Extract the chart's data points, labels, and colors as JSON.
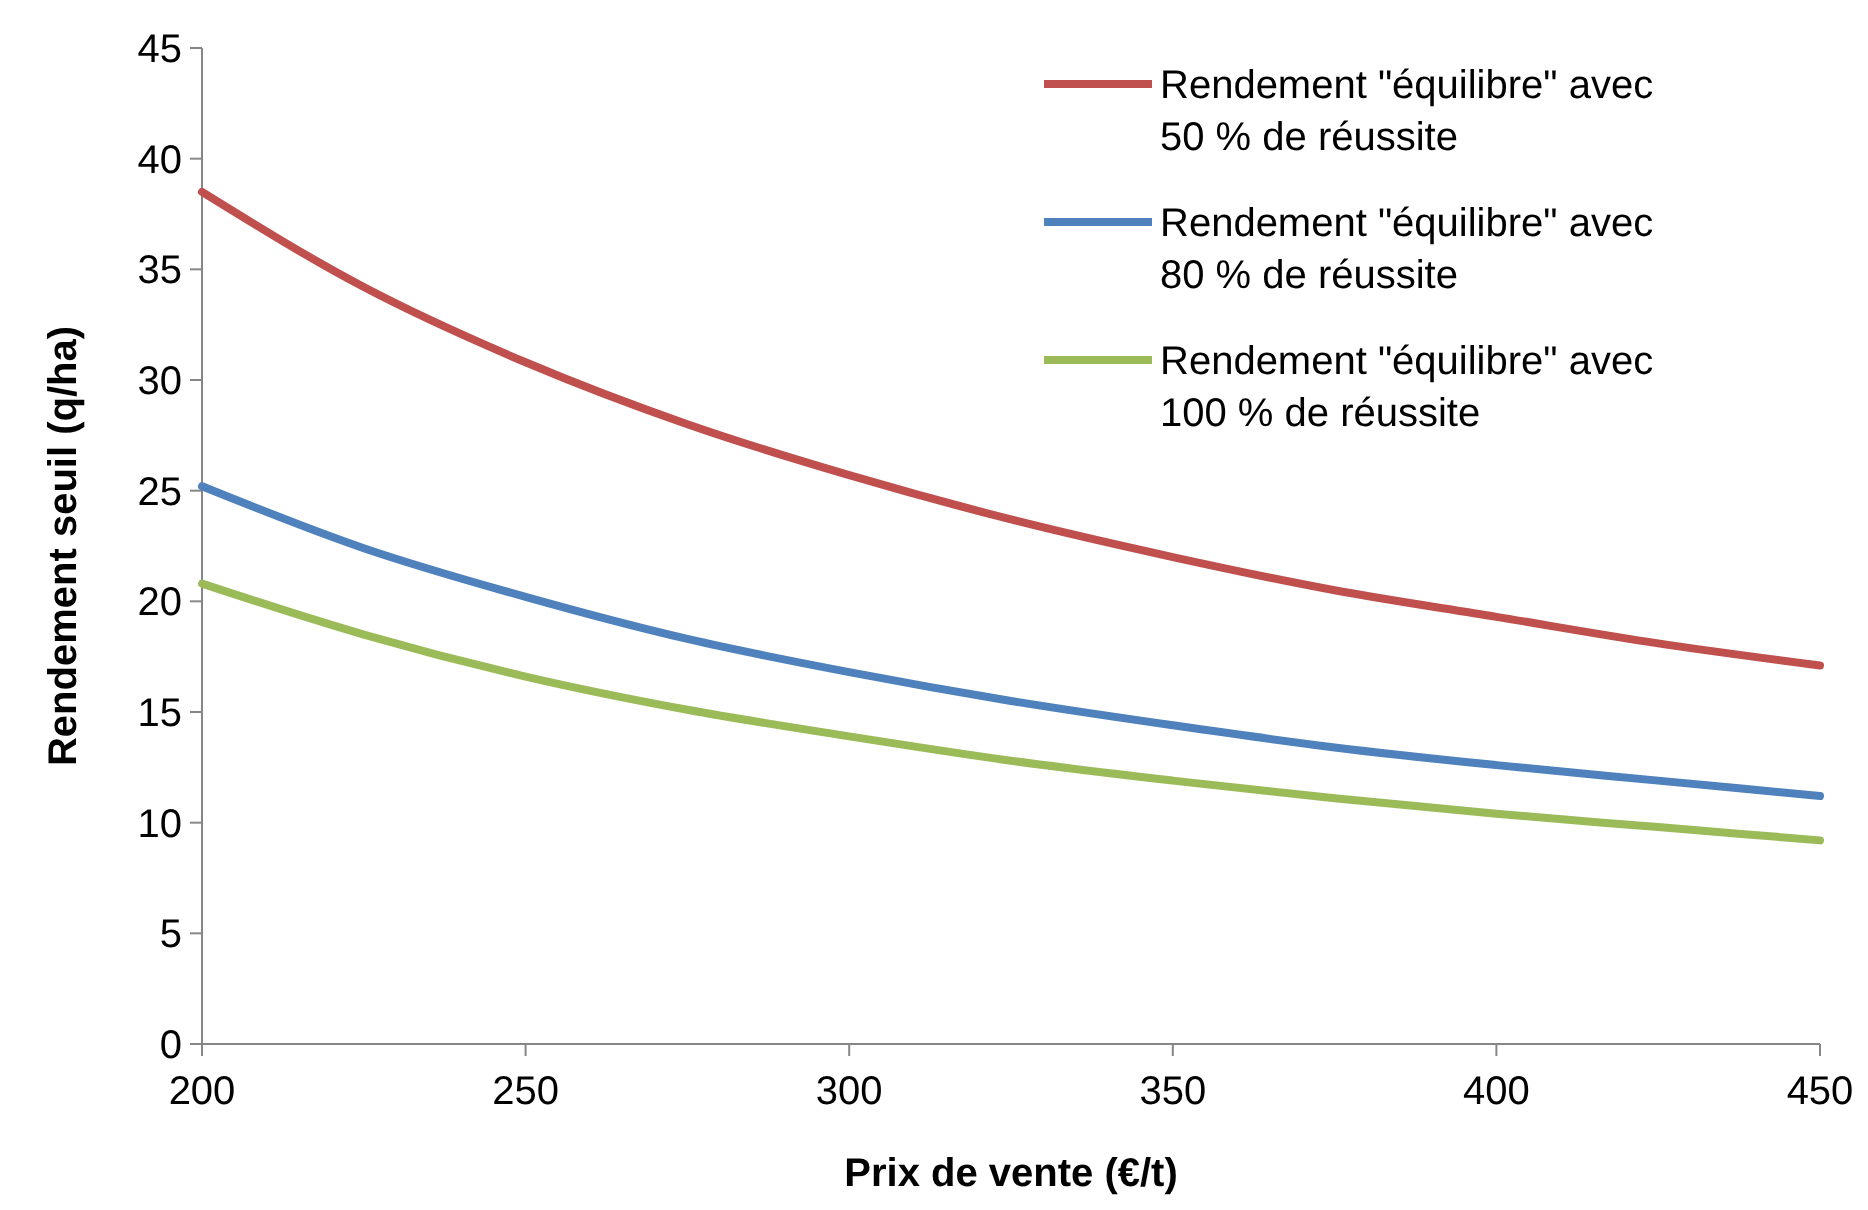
{
  "chart_data": {
    "type": "line",
    "xlabel": "Prix de vente (€/t)",
    "ylabel": "Rendement seuil (q/ha)",
    "x": [
      200,
      225,
      250,
      275,
      300,
      325,
      350,
      375,
      400,
      425,
      450
    ],
    "series": [
      {
        "name": "Rendement \"équilibre\" avec 50 % de réussite",
        "color": "#c0504d",
        "values": [
          38.5,
          34.2,
          30.8,
          28.0,
          25.7,
          23.7,
          22.0,
          20.5,
          19.3,
          18.1,
          17.1
        ]
      },
      {
        "name": "Rendement \"équilibre\" avec 80 % de réussite",
        "color": "#4f81bd",
        "values": [
          25.2,
          22.4,
          20.2,
          18.3,
          16.8,
          15.5,
          14.4,
          13.4,
          12.6,
          11.9,
          11.2
        ]
      },
      {
        "name": "Rendement \"équilibre\" avec 100 % de réussite",
        "color": "#9bbb59",
        "values": [
          20.8,
          18.5,
          16.6,
          15.1,
          13.9,
          12.8,
          11.9,
          11.1,
          10.4,
          9.8,
          9.2
        ]
      }
    ],
    "xlim": [
      200,
      450
    ],
    "xticks": [
      200,
      250,
      300,
      350,
      400,
      450
    ],
    "ylim": [
      0,
      45
    ],
    "yticks": [
      0,
      5,
      10,
      15,
      20,
      25,
      30,
      35,
      40,
      45
    ],
    "grid": false,
    "legend": "top right",
    "marker": "none",
    "line_style": "solid"
  }
}
